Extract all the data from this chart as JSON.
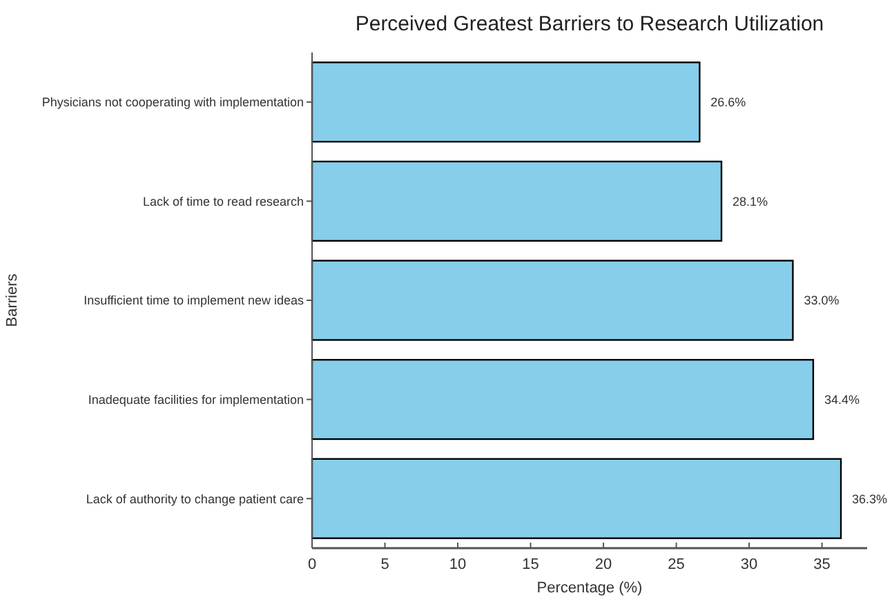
{
  "chart_data": {
    "type": "bar",
    "orientation": "horizontal",
    "title": "Perceived Greatest Barriers to Research Utilization",
    "xlabel": "Percentage (%)",
    "ylabel": "Barriers",
    "categories": [
      "Physicians not cooperating with implementation",
      "Lack of time to read research",
      "Insufficient time to implement new ideas",
      "Inadequate facilities for implementation",
      "Lack of authority to change patient care"
    ],
    "values": [
      26.6,
      28.1,
      33.0,
      34.4,
      36.3
    ],
    "value_labels": [
      "26.6%",
      "28.1%",
      "33.0%",
      "34.4%",
      "36.3%"
    ],
    "color": "#87ceeb",
    "xlim": [
      0,
      38.1
    ],
    "xticks": [
      0,
      5,
      10,
      15,
      20,
      25,
      30,
      35
    ],
    "grid": false
  }
}
